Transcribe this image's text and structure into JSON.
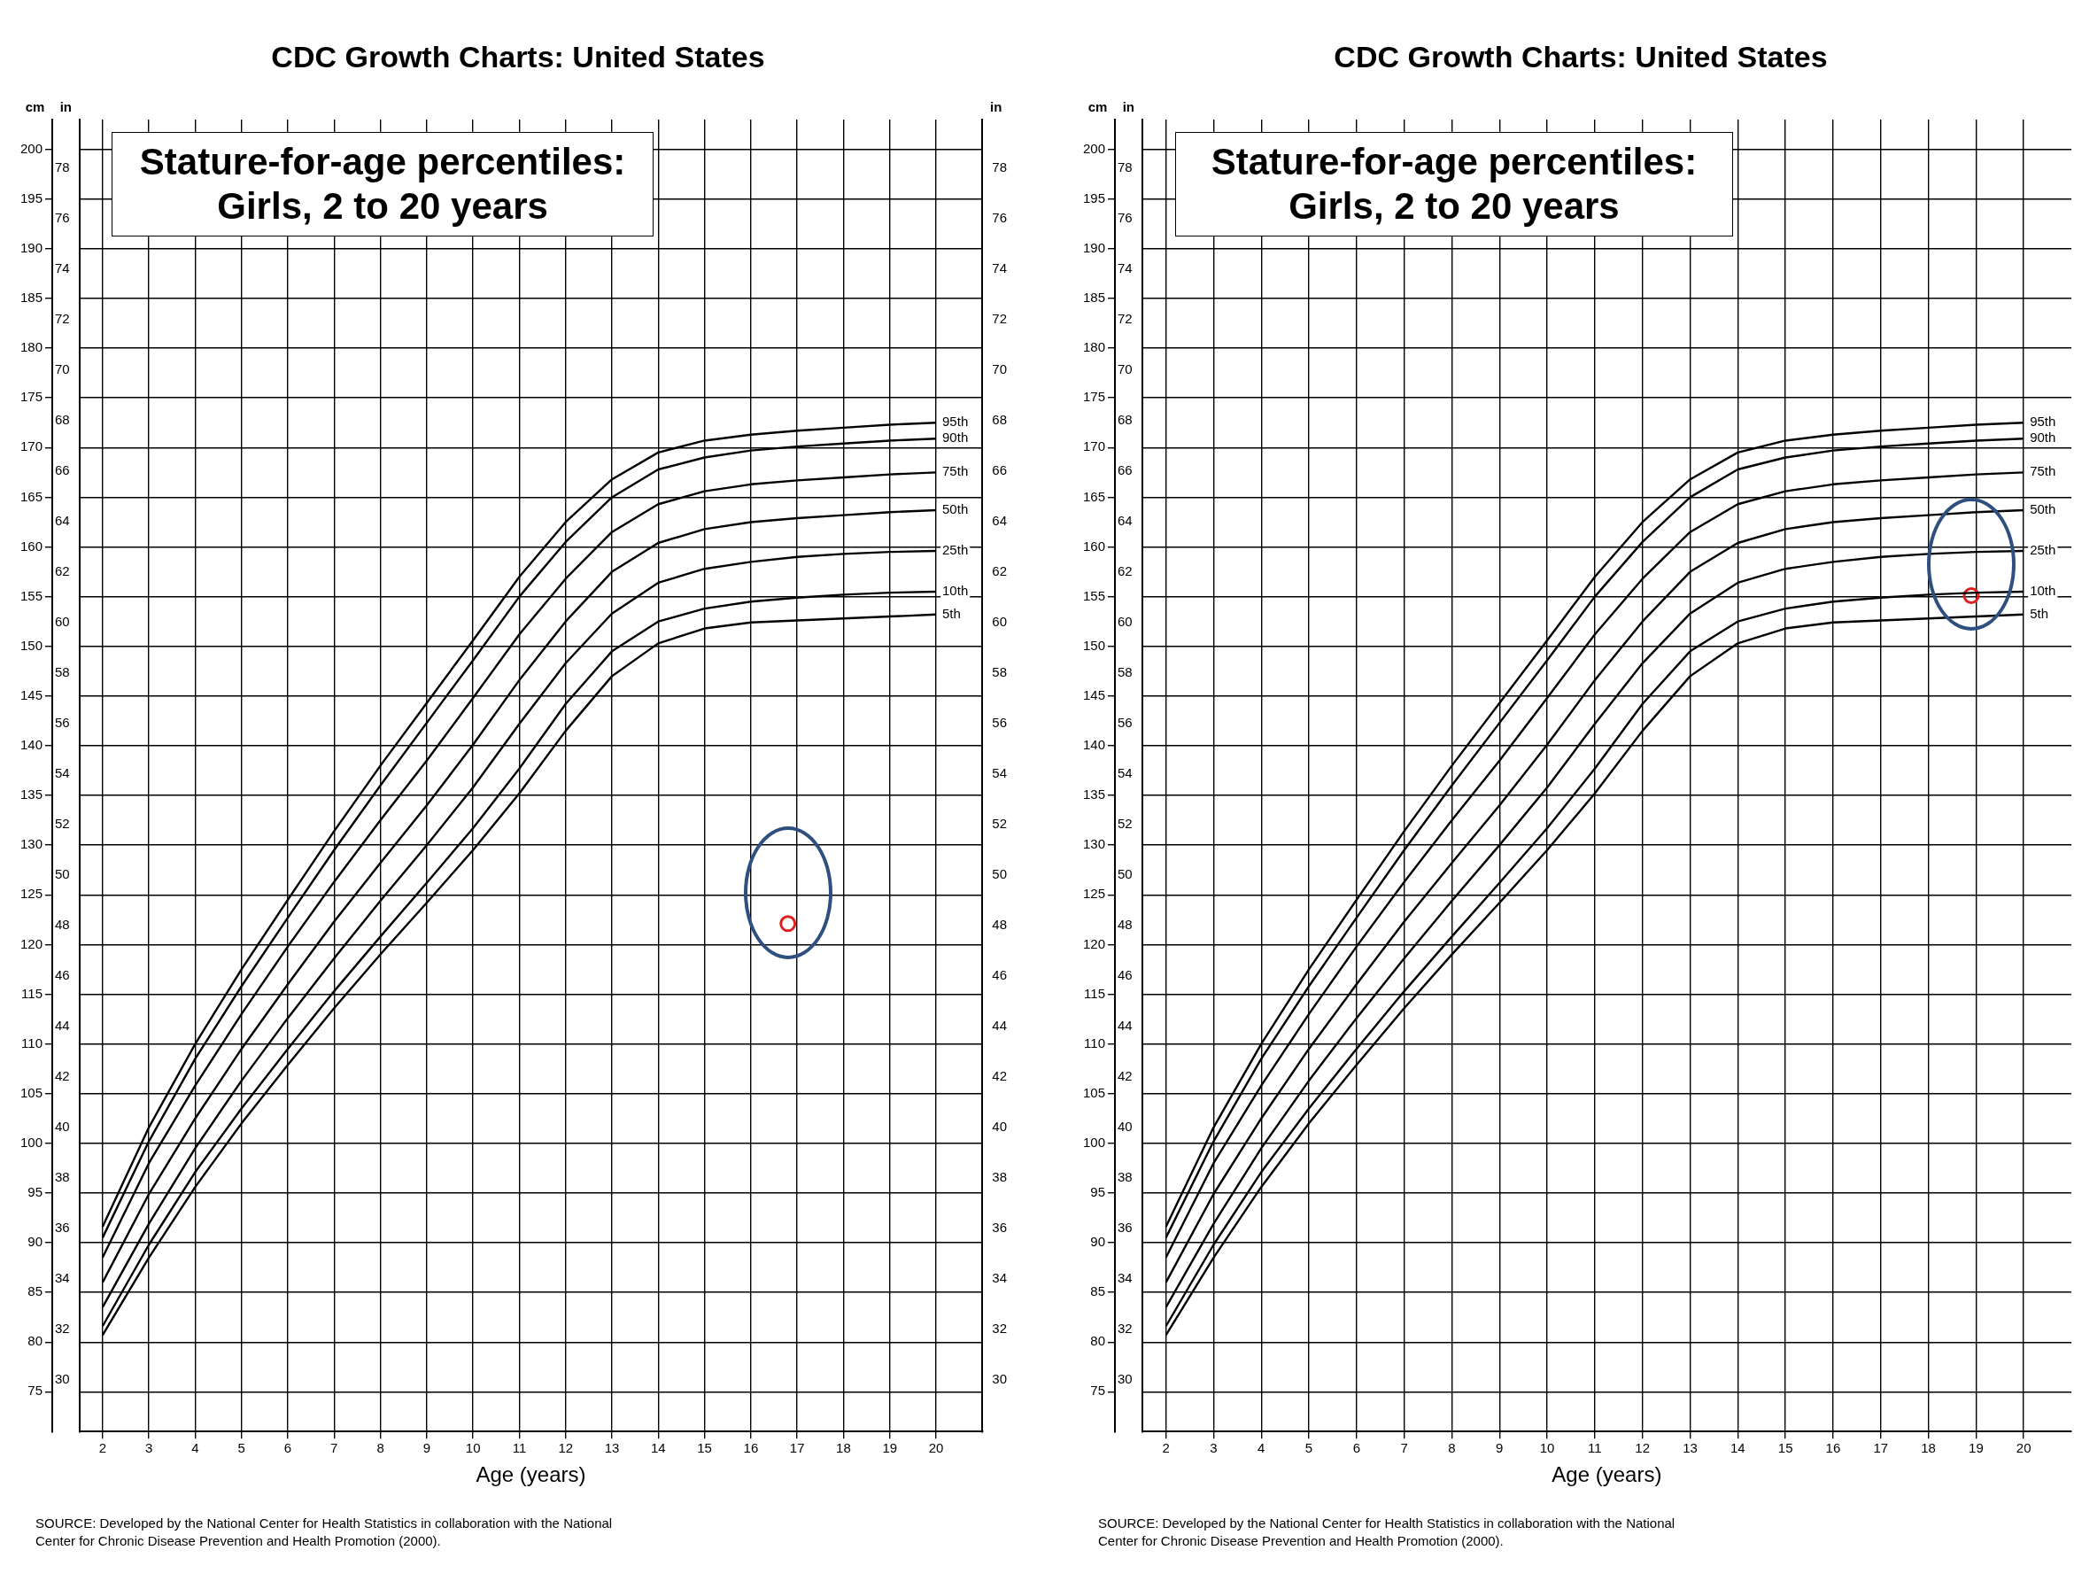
{
  "chart_data": [
    {
      "type": "line",
      "title": "CDC Growth Charts: United States",
      "subtitle": "Stature-for-age percentiles: Girls, 2 to 20 years",
      "xlabel": "Age (years)",
      "ylabel": "cm",
      "y2label": "in",
      "y3label": "in",
      "x": [
        2,
        3,
        4,
        5,
        6,
        7,
        8,
        9,
        10,
        11,
        12,
        13,
        14,
        15,
        16,
        17,
        18,
        19,
        20
      ],
      "xlim": [
        1.5,
        21
      ],
      "xticks": [
        2,
        3,
        4,
        5,
        6,
        7,
        8,
        9,
        10,
        11,
        12,
        13,
        14,
        15,
        16,
        17,
        18,
        19,
        20
      ],
      "ylim": [
        71,
        203
      ],
      "yticks": [
        75,
        80,
        85,
        90,
        95,
        100,
        105,
        110,
        115,
        120,
        125,
        130,
        135,
        140,
        145,
        150,
        155,
        160,
        165,
        170,
        175,
        180,
        185,
        190,
        195,
        200
      ],
      "y2lim": [
        27.95,
        79.92
      ],
      "y2ticks": [
        30,
        32,
        34,
        36,
        38,
        40,
        42,
        44,
        46,
        48,
        50,
        52,
        54,
        56,
        58,
        60,
        62,
        64,
        66,
        68,
        70,
        72,
        74,
        76,
        78
      ],
      "y3lim": [
        27.95,
        79.92
      ],
      "y3ticks": [
        30,
        32,
        34,
        36,
        38,
        40,
        42,
        44,
        46,
        48,
        50,
        52,
        54,
        56,
        58,
        60,
        62,
        64,
        66,
        68,
        70,
        72,
        74,
        76,
        78
      ],
      "grid": true,
      "marker": "none",
      "line_style": "solid",
      "annotations": [
        "SOURCE: Developed by the National Center for Health Statistics in collaboration with the National Center for Chronic Disease Prevention and Health Promotion (2000)."
      ],
      "series": [
        {
          "name": "95th",
          "color": "#000000",
          "values": [
            91.6,
            101.6,
            110.0,
            117.5,
            124.5,
            131.4,
            138.0,
            144.3,
            150.6,
            157.0,
            162.5,
            166.8,
            169.5,
            170.7,
            171.3,
            171.7,
            172.0,
            172.3,
            172.5
          ]
        },
        {
          "name": "90th",
          "color": "#000000",
          "values": [
            90.5,
            100.2,
            108.5,
            115.8,
            122.7,
            129.5,
            136.0,
            142.3,
            148.6,
            155.0,
            160.5,
            165.0,
            167.8,
            169.0,
            169.7,
            170.1,
            170.4,
            170.7,
            170.9
          ]
        },
        {
          "name": "75th",
          "color": "#000000",
          "values": [
            88.5,
            98.0,
            105.8,
            113.0,
            119.8,
            126.3,
            132.5,
            138.5,
            144.8,
            151.2,
            156.8,
            161.5,
            164.3,
            165.6,
            166.3,
            166.7,
            167.0,
            167.3,
            167.5
          ]
        },
        {
          "name": "50th",
          "color": "#000000",
          "values": [
            86.0,
            94.9,
            102.5,
            109.5,
            116.0,
            122.3,
            128.2,
            134.0,
            140.1,
            146.6,
            152.5,
            157.5,
            160.4,
            161.8,
            162.5,
            162.9,
            163.2,
            163.5,
            163.7
          ]
        },
        {
          "name": "25th",
          "color": "#000000",
          "values": [
            83.5,
            91.9,
            99.5,
            106.3,
            112.6,
            118.6,
            124.4,
            130.0,
            135.8,
            142.2,
            148.3,
            153.3,
            156.4,
            157.8,
            158.5,
            159.0,
            159.3,
            159.5,
            159.6
          ]
        },
        {
          "name": "10th",
          "color": "#000000",
          "values": [
            81.6,
            89.8,
            97.1,
            103.5,
            109.5,
            115.3,
            120.8,
            126.2,
            131.7,
            137.7,
            144.2,
            149.5,
            152.5,
            153.8,
            154.5,
            154.9,
            155.2,
            155.4,
            155.5
          ]
        },
        {
          "name": "5th",
          "color": "#000000",
          "values": [
            80.7,
            88.5,
            95.6,
            102.0,
            107.9,
            113.6,
            119.0,
            124.2,
            129.5,
            135.2,
            141.5,
            147.0,
            150.3,
            151.8,
            152.4,
            152.6,
            152.8,
            153.0,
            153.2
          ]
        },
        {
          "type": "scatter",
          "color": "#e02020",
          "marker": "circle",
          "x": [
            16.8
          ],
          "values": [
            122.1
          ]
        }
      ]
    },
    {
      "type": "line",
      "title": "CDC Growth Charts: United States",
      "subtitle": "Stature-for-age percentiles: Girls, 2 to 20 years",
      "xlabel": "Age (years)",
      "ylabel": "cm",
      "y2label": "in",
      "x": [
        2,
        3,
        4,
        5,
        6,
        7,
        8,
        9,
        10,
        11,
        12,
        13,
        14,
        15,
        16,
        17,
        18,
        19,
        20
      ],
      "xlim": [
        1.5,
        21
      ],
      "xticks": [
        2,
        3,
        4,
        5,
        6,
        7,
        8,
        9,
        10,
        11,
        12,
        13,
        14,
        15,
        16,
        17,
        18,
        19,
        20
      ],
      "ylim": [
        71,
        203
      ],
      "yticks": [
        75,
        80,
        85,
        90,
        95,
        100,
        105,
        110,
        115,
        120,
        125,
        130,
        135,
        140,
        145,
        150,
        155,
        160,
        165,
        170,
        175,
        180,
        185,
        190,
        195,
        200
      ],
      "y2lim": [
        27.95,
        79.92
      ],
      "y2ticks": [
        30,
        32,
        34,
        36,
        38,
        40,
        42,
        44,
        46,
        48,
        50,
        52,
        54,
        56,
        58,
        60,
        62,
        64,
        66,
        68,
        70,
        72,
        74,
        76,
        78
      ],
      "grid": true,
      "marker": "none",
      "line_style": "solid",
      "annotations": [
        "SOURCE: Developed by the National Center for Health Statistics in collaboration with the National Center for Chronic Disease Prevention and Health Promotion (2000)."
      ],
      "series": [
        {
          "name": "95th",
          "color": "#000000",
          "values": [
            91.6,
            101.6,
            110.0,
            117.5,
            124.5,
            131.4,
            138.0,
            144.3,
            150.6,
            157.0,
            162.5,
            166.8,
            169.5,
            170.7,
            171.3,
            171.7,
            172.0,
            172.3,
            172.5
          ]
        },
        {
          "name": "90th",
          "color": "#000000",
          "values": [
            90.5,
            100.2,
            108.5,
            115.8,
            122.7,
            129.5,
            136.0,
            142.3,
            148.6,
            155.0,
            160.5,
            165.0,
            167.8,
            169.0,
            169.7,
            170.1,
            170.4,
            170.7,
            170.9
          ]
        },
        {
          "name": "75th",
          "color": "#000000",
          "values": [
            88.5,
            98.0,
            105.8,
            113.0,
            119.8,
            126.3,
            132.5,
            138.5,
            144.8,
            151.2,
            156.8,
            161.5,
            164.3,
            165.6,
            166.3,
            166.7,
            167.0,
            167.3,
            167.5
          ]
        },
        {
          "name": "50th",
          "color": "#000000",
          "values": [
            86.0,
            94.9,
            102.5,
            109.5,
            116.0,
            122.3,
            128.2,
            134.0,
            140.1,
            146.6,
            152.5,
            157.5,
            160.4,
            161.8,
            162.5,
            162.9,
            163.2,
            163.5,
            163.7
          ]
        },
        {
          "name": "25th",
          "color": "#000000",
          "values": [
            83.5,
            91.9,
            99.5,
            106.3,
            112.6,
            118.6,
            124.4,
            130.0,
            135.8,
            142.2,
            148.3,
            153.3,
            156.4,
            157.8,
            158.5,
            159.0,
            159.3,
            159.5,
            159.6
          ]
        },
        {
          "name": "10th",
          "color": "#000000",
          "values": [
            81.6,
            89.8,
            97.1,
            103.5,
            109.5,
            115.3,
            120.8,
            126.2,
            131.7,
            137.7,
            144.2,
            149.5,
            152.5,
            153.8,
            154.5,
            154.9,
            155.2,
            155.4,
            155.5
          ]
        },
        {
          "name": "5th",
          "color": "#000000",
          "values": [
            80.7,
            88.5,
            95.6,
            102.0,
            107.9,
            113.6,
            119.0,
            124.2,
            129.5,
            135.2,
            141.5,
            147.0,
            150.3,
            151.8,
            152.4,
            152.6,
            152.8,
            153.0,
            153.2
          ]
        },
        {
          "type": "scatter",
          "color": "#e02020",
          "marker": "circle",
          "x": [
            18.9
          ],
          "values": [
            155.1
          ]
        }
      ]
    }
  ]
}
